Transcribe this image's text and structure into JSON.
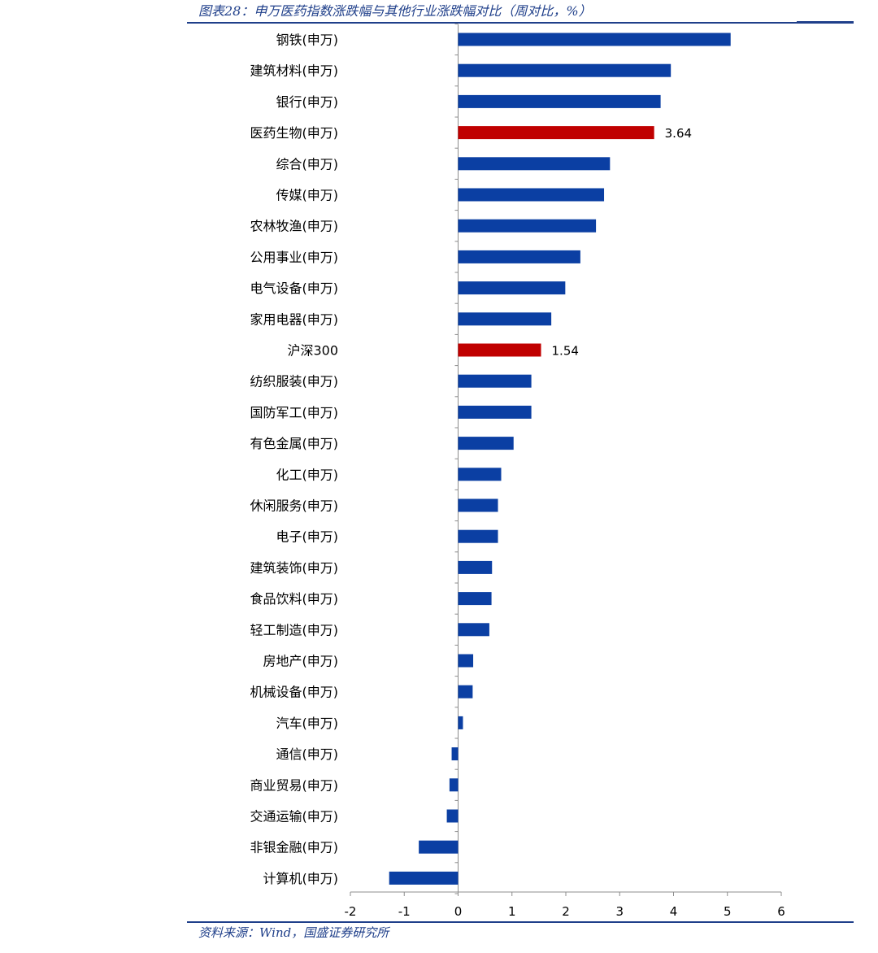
{
  "header": {
    "title": "图表28：申万医药指数涨跌幅与其他行业涨跌幅对比（周对比，%）"
  },
  "footer": {
    "source": "资料来源：Wind，国盛证券研究所"
  },
  "colors": {
    "default_bar": "#0b3fa3",
    "highlight_bar": "#c00000",
    "axis": "#8c8c8c",
    "rule": "#1f3f8a"
  },
  "chart_data": {
    "type": "bar",
    "orientation": "horizontal",
    "title": "申万医药指数涨跌幅与其他行业涨跌幅对比（周对比，%）",
    "xlabel": "",
    "ylabel": "",
    "xlim": [
      -2,
      6
    ],
    "xticks": [
      "-2",
      "-1",
      "0",
      "1",
      "2",
      "3",
      "4",
      "5",
      "6"
    ],
    "grid": false,
    "legend": "none",
    "categories": [
      "钢铁(申万)",
      "建筑材料(申万)",
      "银行(申万)",
      "医药生物(申万)",
      "综合(申万)",
      "传媒(申万)",
      "农林牧渔(申万)",
      "公用事业(申万)",
      "电气设备(申万)",
      "家用电器(申万)",
      "沪深300",
      "纺织服装(申万)",
      "国防军工(申万)",
      "有色金属(申万)",
      "化工(申万)",
      "休闲服务(申万)",
      "电子(申万)",
      "建筑装饰(申万)",
      "食品饮料(申万)",
      "轻工制造(申万)",
      "房地产(申万)",
      "机械设备(申万)",
      "汽车(申万)",
      "通信(申万)",
      "商业贸易(申万)",
      "交通运输(申万)",
      "非银金融(申万)",
      "计算机(申万)"
    ],
    "values": [
      5.06,
      3.95,
      3.76,
      3.64,
      2.82,
      2.71,
      2.56,
      2.27,
      1.99,
      1.73,
      1.54,
      1.36,
      1.36,
      1.03,
      0.8,
      0.74,
      0.74,
      0.63,
      0.62,
      0.58,
      0.28,
      0.27,
      0.09,
      -0.12,
      -0.16,
      -0.21,
      -0.73,
      -1.28
    ],
    "highlight": [
      "医药生物(申万)",
      "沪深300"
    ],
    "data_labels": {
      "医药生物(申万)": "3.64",
      "沪深300": "1.54"
    }
  }
}
